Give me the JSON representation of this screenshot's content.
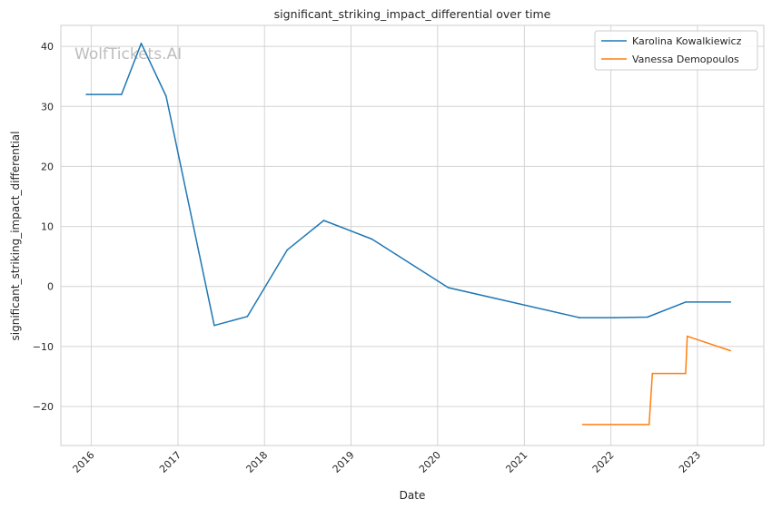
{
  "chart_data": {
    "type": "line",
    "title": "significant_striking_impact_differential over time",
    "xlabel": "Date",
    "ylabel": "significant_striking_impact_differential",
    "watermark": "WolfTickets.AI",
    "xlim": [
      "2015-08-26",
      "2023-10-08"
    ],
    "ylim": [
      -26.5,
      43.5
    ],
    "x_ticks": [
      "2016",
      "2017",
      "2018",
      "2019",
      "2020",
      "2021",
      "2022",
      "2023"
    ],
    "y_ticks": [
      -20,
      -10,
      0,
      10,
      20,
      30,
      40
    ],
    "grid": true,
    "legend_position": "top-right",
    "series": [
      {
        "name": "Karolina Kowalkiewicz",
        "color": "#1f77b4",
        "points": [
          [
            "2015-12-12",
            32.0
          ],
          [
            "2016-05-08",
            32.0
          ],
          [
            "2016-07-30",
            40.5
          ],
          [
            "2016-11-12",
            31.7
          ],
          [
            "2017-06-03",
            -6.5
          ],
          [
            "2017-10-21",
            -5.0
          ],
          [
            "2018-04-07",
            6.1
          ],
          [
            "2018-09-08",
            11.0
          ],
          [
            "2019-03-30",
            7.9
          ],
          [
            "2020-02-15",
            -0.2
          ],
          [
            "2021-08-21",
            -5.2
          ],
          [
            "2022-01-15",
            -5.2
          ],
          [
            "2022-06-04",
            -5.1
          ],
          [
            "2022-11-12",
            -2.6
          ],
          [
            "2023-05-20",
            -2.6
          ]
        ]
      },
      {
        "name": "Vanessa Demopoulos",
        "color": "#ff7f0e",
        "points": [
          [
            "2021-09-04",
            -23.0
          ],
          [
            "2022-01-22",
            -23.0
          ],
          [
            "2022-06-11",
            -23.0
          ],
          [
            "2022-06-25",
            -14.5
          ],
          [
            "2022-11-12",
            -14.5
          ],
          [
            "2022-11-19",
            -8.3
          ],
          [
            "2023-05-20",
            -10.7
          ]
        ]
      }
    ]
  }
}
